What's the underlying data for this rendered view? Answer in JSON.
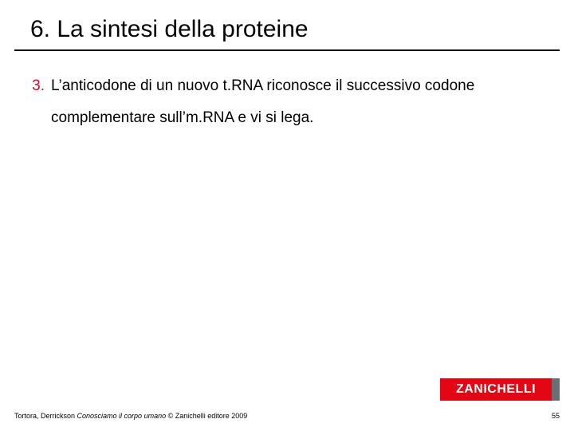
{
  "slide": {
    "title": "6. La sintesi della proteine",
    "list": {
      "number": "3.",
      "text": "L’anticodone di un nuovo t.RNA riconosce il successivo codone complementare sull’m.RNA e vi si lega."
    },
    "footer": {
      "authors": "Tortora, Derrickson ",
      "book_title": "Conosciamo il corpo umano",
      "publisher": " © Zanichelli editore 2009",
      "page": "55"
    },
    "logo": {
      "brand": "ZANICHELLI",
      "brand_color": "#e30613",
      "accent_color": "#6d6e71",
      "text_color": "#ffffff"
    },
    "colors": {
      "title_underline": "#000000",
      "list_number": "#c8102e",
      "body_text": "#000000",
      "background": "#ffffff"
    },
    "typography": {
      "title_fontsize": 30,
      "body_fontsize": 19,
      "footer_fontsize": 9,
      "logo_fontsize": 16
    }
  }
}
